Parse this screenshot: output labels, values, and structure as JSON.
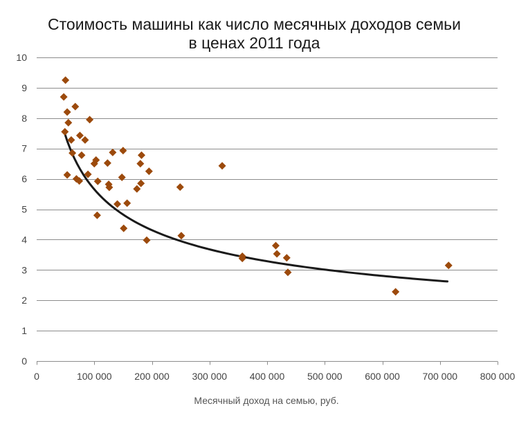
{
  "chart_data": {
    "type": "scatter",
    "title": "Стоимость машины как число месячных доходов семьи",
    "subtitle": "в ценах 2011 года",
    "xlabel": "Месячный доход на семью, руб.",
    "ylabel": "",
    "xlim": [
      0,
      800000
    ],
    "ylim": [
      0,
      10
    ],
    "x_ticks": [
      0,
      100000,
      200000,
      300000,
      400000,
      500000,
      600000,
      700000,
      800000
    ],
    "x_tick_labels": [
      "0",
      "100 000",
      "200 000",
      "300 000",
      "400 000",
      "500 000",
      "600 000",
      "700 000",
      "800 000"
    ],
    "y_ticks": [
      0,
      1,
      2,
      3,
      4,
      5,
      6,
      7,
      8,
      9,
      10
    ],
    "y_tick_labels": [
      "0",
      "1",
      "2",
      "3",
      "4",
      "5",
      "6",
      "7",
      "8",
      "9",
      "10"
    ],
    "grid": true,
    "legend": "none",
    "marker": "diamond",
    "marker_color": "#9c4a0c",
    "trend_color": "#1a1a1a",
    "series": [
      {
        "points": [
          [
            47000,
            8.7
          ],
          [
            50000,
            9.25
          ],
          [
            49000,
            7.55
          ],
          [
            53000,
            8.2
          ],
          [
            55000,
            7.85
          ],
          [
            53000,
            6.13
          ],
          [
            60000,
            7.28
          ],
          [
            62000,
            6.85
          ],
          [
            67000,
            8.38
          ],
          [
            69000,
            6.0
          ],
          [
            75000,
            7.43
          ],
          [
            74000,
            5.93
          ],
          [
            78000,
            6.78
          ],
          [
            84000,
            7.28
          ],
          [
            89000,
            6.15
          ],
          [
            92000,
            7.95
          ],
          [
            100000,
            6.5
          ],
          [
            103000,
            6.62
          ],
          [
            105000,
            4.8
          ],
          [
            106000,
            5.92
          ],
          [
            123000,
            6.52
          ],
          [
            125000,
            5.82
          ],
          [
            126000,
            5.72
          ],
          [
            132000,
            6.87
          ],
          [
            140000,
            5.17
          ],
          [
            148000,
            6.05
          ],
          [
            150000,
            6.93
          ],
          [
            151000,
            4.37
          ],
          [
            157000,
            5.2
          ],
          [
            174000,
            5.67
          ],
          [
            180000,
            6.5
          ],
          [
            181000,
            5.85
          ],
          [
            182000,
            6.78
          ],
          [
            191000,
            3.98
          ],
          [
            195000,
            6.25
          ],
          [
            249000,
            5.73
          ],
          [
            251000,
            4.13
          ],
          [
            322000,
            6.43
          ],
          [
            357000,
            3.45
          ],
          [
            357000,
            3.38
          ],
          [
            415000,
            3.8
          ],
          [
            417000,
            3.53
          ],
          [
            434000,
            3.4
          ],
          [
            436000,
            2.92
          ],
          [
            623000,
            2.28
          ],
          [
            715000,
            3.15
          ]
        ]
      }
    ],
    "trendline": {
      "type": "power",
      "a": 512.2,
      "b": -0.3914,
      "x_range": [
        48000,
        713000
      ]
    }
  }
}
